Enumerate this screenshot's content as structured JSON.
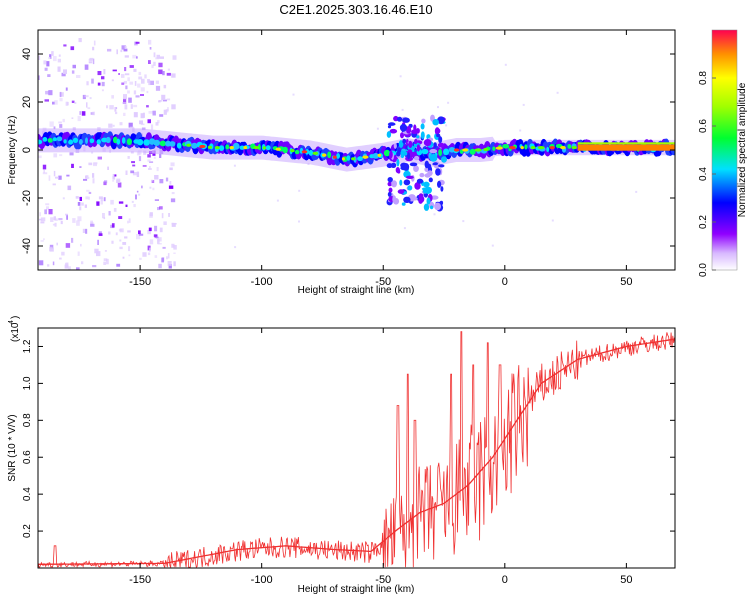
{
  "chart_data": [
    {
      "type": "heatmap",
      "title": "C2E1.2025.303.16.46.E10",
      "xlabel": "Height of straight line (km)",
      "ylabel": "Frequency (Hz)",
      "xlim": [
        -192,
        70
      ],
      "ylim": [
        -50,
        50
      ],
      "xticks": [
        -150,
        -100,
        -50,
        0,
        50
      ],
      "yticks": [
        -40,
        -20,
        0,
        20,
        40
      ],
      "colorbar": {
        "label": "Normalized spectral amplitude",
        "range": [
          0,
          1
        ],
        "ticks": [
          "0.0",
          "0.2",
          "0.4",
          "0.6",
          "0.8"
        ],
        "tick_values": [
          0,
          0.2,
          0.4,
          0.6,
          0.8
        ]
      },
      "ridge": [
        {
          "x": -190,
          "freq": 4
        },
        {
          "x": -150,
          "freq": 4
        },
        {
          "x": -120,
          "freq": 1
        },
        {
          "x": -100,
          "freq": 1
        },
        {
          "x": -80,
          "freq": -1
        },
        {
          "x": -65,
          "freq": -4
        },
        {
          "x": -50,
          "freq": -2
        },
        {
          "x": -40,
          "freq": 0
        },
        {
          "x": -30,
          "freq": -2
        },
        {
          "x": -20,
          "freq": 0
        },
        {
          "x": -10,
          "freq": 0
        },
        {
          "x": 0,
          "freq": 1
        },
        {
          "x": 20,
          "freq": 1
        },
        {
          "x": 70,
          "freq": 1
        }
      ],
      "noise_region": {
        "x_from": -192,
        "x_to": -136,
        "freq_from": -50,
        "freq_to": 47
      },
      "scatter_region": {
        "x_from": -48,
        "x_to": -25,
        "freq_from": -24,
        "freq_to": 14
      }
    },
    {
      "type": "line",
      "xlabel": "Height of straight line (km)",
      "ylabel": "SNR (10 * V/V)",
      "scale_label": "(x10",
      "scale_exponent": "4",
      "xlim": [
        -192,
        70
      ],
      "ylim": [
        0,
        1.3
      ],
      "xticks": [
        -150,
        -100,
        -50,
        0,
        50
      ],
      "yticks": [
        0.2,
        0.4,
        0.6,
        0.8,
        1.0,
        1.2
      ],
      "ytick_labels": [
        "0.2",
        "0.4",
        "0.6",
        "0.8",
        "1.0",
        "1.2"
      ],
      "series": [
        {
          "name": "SNR",
          "color": "#f03030",
          "trend": [
            {
              "x": -192,
              "y": 0.02
            },
            {
              "x": -140,
              "y": 0.025
            },
            {
              "x": -130,
              "y": 0.05
            },
            {
              "x": -110,
              "y": 0.1
            },
            {
              "x": -90,
              "y": 0.12
            },
            {
              "x": -70,
              "y": 0.1
            },
            {
              "x": -55,
              "y": 0.09
            },
            {
              "x": -45,
              "y": 0.2
            },
            {
              "x": -35,
              "y": 0.3
            },
            {
              "x": -25,
              "y": 0.35
            },
            {
              "x": -15,
              "y": 0.45
            },
            {
              "x": -5,
              "y": 0.6
            },
            {
              "x": 5,
              "y": 0.8
            },
            {
              "x": 15,
              "y": 1.0
            },
            {
              "x": 30,
              "y": 1.13
            },
            {
              "x": 50,
              "y": 1.2
            },
            {
              "x": 70,
              "y": 1.24
            }
          ],
          "spikes": [
            {
              "x": -185,
              "y": 0.12
            },
            {
              "x": -44,
              "y": 0.88
            },
            {
              "x": -40,
              "y": 1.05
            },
            {
              "x": -37,
              "y": 0.8
            },
            {
              "x": -22,
              "y": 1.05
            },
            {
              "x": -18,
              "y": 1.28
            },
            {
              "x": -13,
              "y": 1.1
            },
            {
              "x": -7,
              "y": 1.22
            },
            {
              "x": -2,
              "y": 1.1
            }
          ]
        }
      ]
    }
  ]
}
